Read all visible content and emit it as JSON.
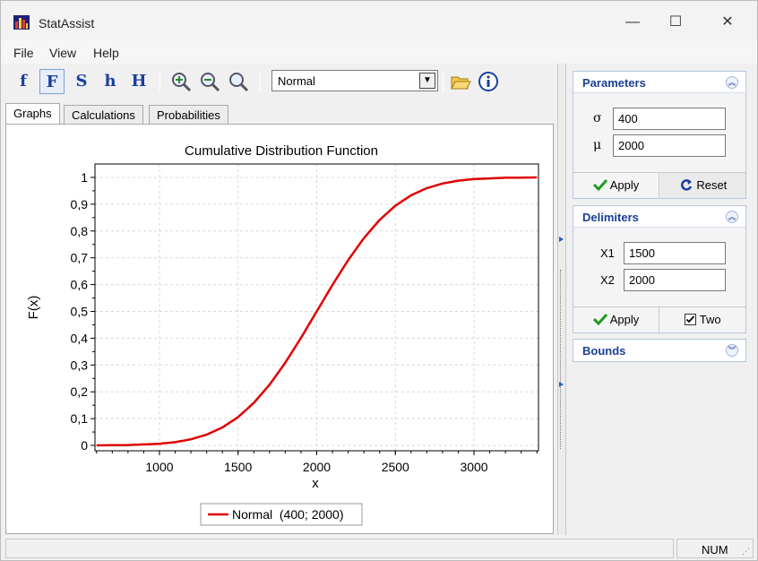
{
  "window": {
    "title": "StatAssist"
  },
  "menu": {
    "file": "File",
    "view": "View",
    "help": "Help"
  },
  "toolbar": {
    "func_buttons": [
      "f",
      "F",
      "S",
      "h",
      "H"
    ],
    "distribution": "Normal"
  },
  "tabs": [
    "Graphs",
    "Calculations",
    "Probabilities"
  ],
  "parameters": {
    "title": "Parameters",
    "sigma_label": "σ",
    "sigma_value": "400",
    "mu_label": "μ",
    "mu_value": "2000",
    "apply_label": "Apply",
    "reset_label": "Reset"
  },
  "delimiters": {
    "title": "Delimiters",
    "x1_label": "X1",
    "x1_value": "1500",
    "x2_label": "X2",
    "x2_value": "2000",
    "apply_label": "Apply",
    "two_label": "Two",
    "two_checked": true
  },
  "bounds": {
    "title": "Bounds"
  },
  "status": {
    "num": "NUM"
  },
  "colors": {
    "curve": "#e00000",
    "accent": "#1a3f94"
  },
  "chart_data": {
    "type": "line",
    "title": "Cumulative Distribution Function",
    "xlabel": "x",
    "ylabel": "F(x)",
    "xlim": [
      590,
      3410
    ],
    "ylim": [
      -0.02,
      1.05
    ],
    "xticks": [
      1000,
      1500,
      2000,
      2500,
      3000
    ],
    "yticks": [
      0,
      0.1,
      0.2,
      0.3,
      0.4,
      0.5,
      0.6,
      0.7,
      0.8,
      0.9,
      1
    ],
    "ytick_labels": [
      "0",
      "0,1",
      "0,2",
      "0,3",
      "0,4",
      "0,5",
      "0,6",
      "0,7",
      "0,8",
      "0,9",
      "1"
    ],
    "grid": true,
    "legend_position": "bottom",
    "series": [
      {
        "name": "Normal  (400; 2000)",
        "color": "#e00000",
        "x": [
          600,
          800,
          1000,
          1100,
          1200,
          1300,
          1400,
          1500,
          1600,
          1700,
          1800,
          1900,
          2000,
          2100,
          2200,
          2300,
          2400,
          2500,
          2600,
          2700,
          2800,
          2900,
          3000,
          3200,
          3400
        ],
        "y": [
          0.0002,
          0.0013,
          0.0062,
          0.0122,
          0.0228,
          0.0401,
          0.0668,
          0.1056,
          0.1587,
          0.2266,
          0.3085,
          0.4013,
          0.5,
          0.5987,
          0.6915,
          0.7734,
          0.8413,
          0.8944,
          0.9332,
          0.9599,
          0.9772,
          0.9878,
          0.9938,
          0.9987,
          0.9998
        ]
      }
    ]
  }
}
